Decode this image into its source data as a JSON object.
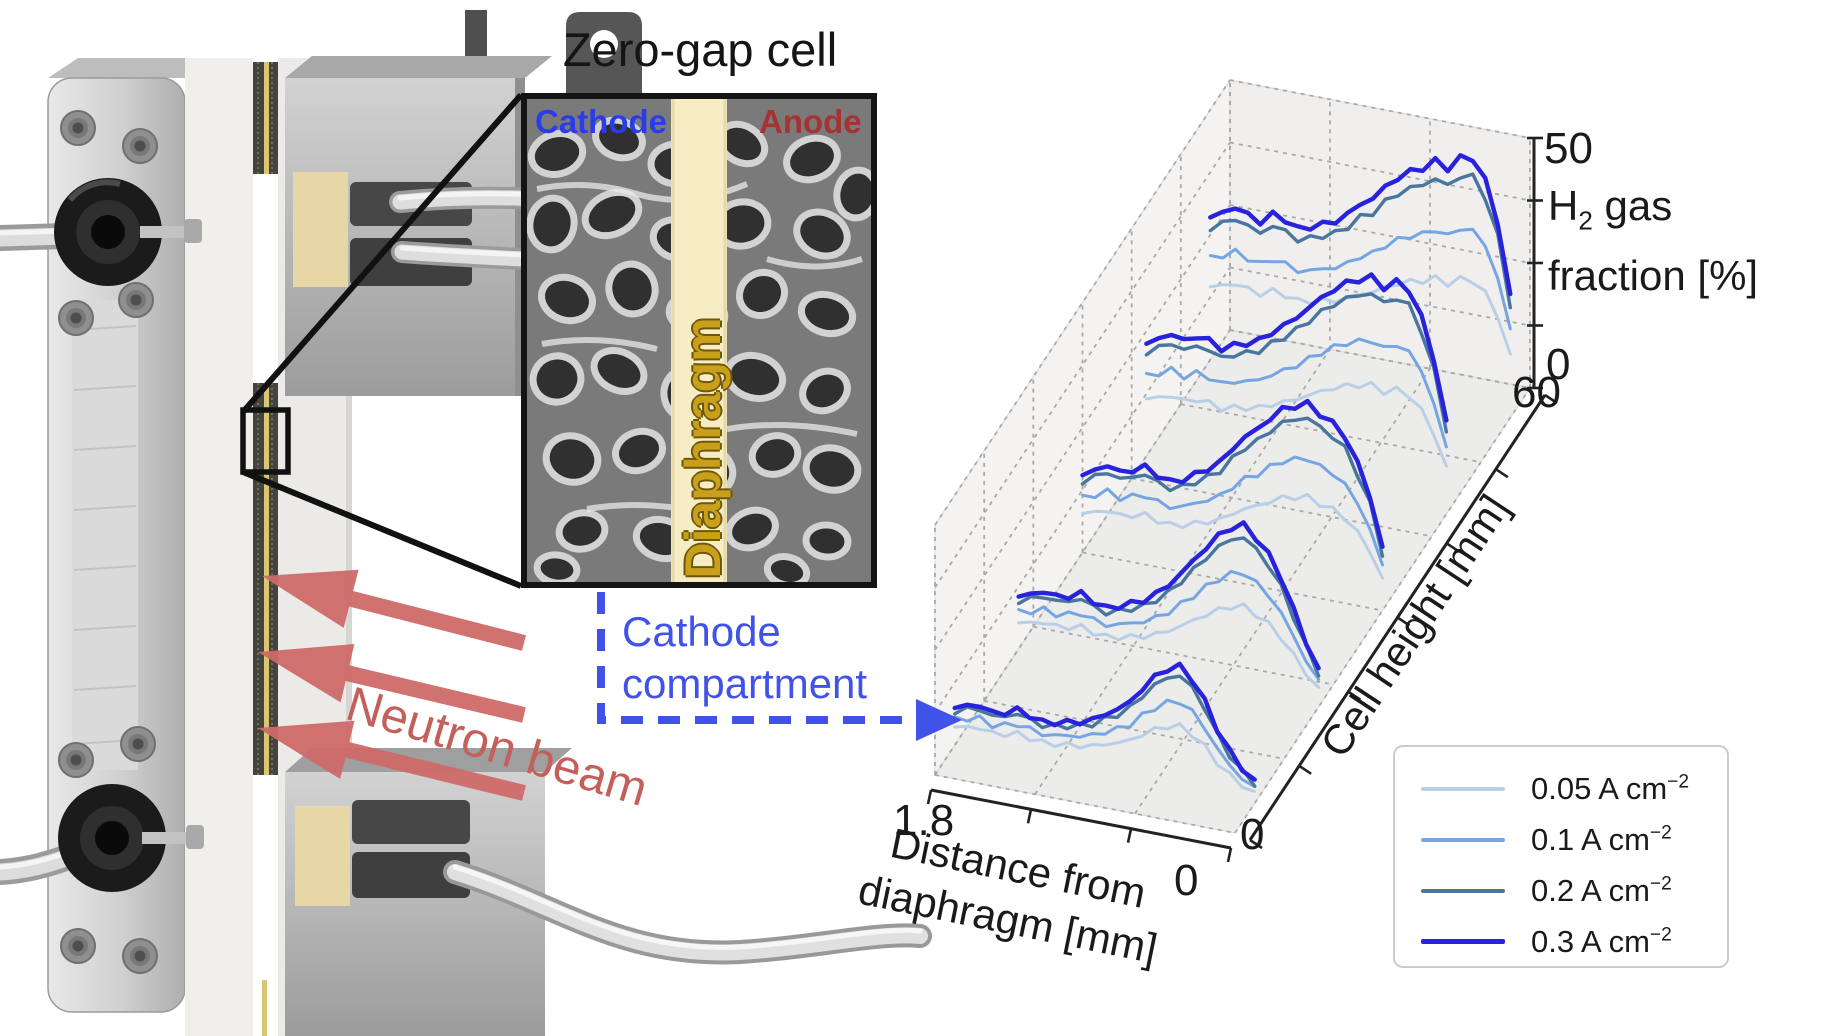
{
  "figure": {
    "inset": {
      "title": "Zero-gap cell",
      "cathode_label": "Cathode",
      "anode_label": "Anode",
      "diaphragm_label": "Diaphragm"
    },
    "annotations": {
      "neutron_beam": "Neutron beam",
      "cathode_compartment_line1": "Cathode",
      "cathode_compartment_line2": "compartment"
    },
    "colors": {
      "cathode_text": "#2a3ce8",
      "anode_text": "#a83232",
      "diaphragm_band": "#f7edc5",
      "diaphragm_text": "#c9a01c",
      "neutron_beam": "#cd6a68",
      "compartment_arrow": "#4152e8"
    }
  },
  "chart_data": {
    "type": "line",
    "projection": "3d-waterfall",
    "title": "",
    "grid": true,
    "legend_position": "lower right",
    "x_axis": {
      "label": "Distance from diaphragm [mm]",
      "label_line1": "Distance from",
      "label_line2": "diaphragm [mm]",
      "range": [
        1.8,
        0
      ],
      "ticks": [
        1.8,
        1.2,
        0.6,
        0
      ],
      "tick_labels_shown": [
        "1.8",
        "0"
      ]
    },
    "y_axis": {
      "label": "Cell height [mm]",
      "range": [
        0,
        60
      ],
      "ticks": [
        0,
        10,
        20,
        30,
        40,
        50,
        60
      ],
      "tick_labels_shown": [
        "0",
        "60"
      ]
    },
    "z_axis": {
      "label_h": "H",
      "label_sub": "2",
      "label_rest": " gas",
      "label_line2": "fraction [%]",
      "range": [
        0,
        50
      ],
      "ticks": [
        0,
        12.5,
        25,
        37.5,
        50
      ],
      "tick_labels_shown": [
        "0",
        "50"
      ]
    },
    "series": [
      {
        "label": "0.05 A cm",
        "sup": "−2",
        "color": "#b9cfe8",
        "relative_scale": 0.52,
        "line_width": 3
      },
      {
        "label": "0.1 A cm",
        "sup": "−2",
        "color": "#76a5e3",
        "relative_scale": 0.72,
        "line_width": 3
      },
      {
        "label": "0.2 A cm",
        "sup": "−2",
        "color": "#48769f",
        "relative_scale": 0.93,
        "line_width": 3.4
      },
      {
        "label": "0.3 A cm",
        "sup": "−2",
        "color": "#2822dd",
        "relative_scale": 1.0,
        "line_width": 4.4
      }
    ],
    "x_samples_mm": [
      1.8,
      1.725,
      1.65,
      1.575,
      1.5,
      1.425,
      1.35,
      1.275,
      1.2,
      1.125,
      1.05,
      0.975,
      0.9,
      0.825,
      0.75,
      0.675,
      0.6,
      0.525,
      0.45,
      0.375,
      0.3,
      0.225,
      0.15,
      0.075,
      0
    ],
    "profiles": [
      {
        "cell_height_mm": 56,
        "h2_fraction_at_0p3A": [
          28,
          29.5,
          31,
          30,
          29,
          31,
          30.5,
          29,
          30,
          31,
          32,
          34,
          36.5,
          38,
          41,
          43,
          45,
          46,
          48,
          47,
          49.5,
          50,
          46,
          38,
          24
        ]
      },
      {
        "cell_height_mm": 43,
        "h2_fraction_at_0p3A": [
          22,
          23.5,
          25,
          24,
          25.5,
          25,
          24,
          25,
          26,
          27,
          29,
          31,
          33,
          35.5,
          38,
          40,
          42,
          43,
          44,
          42.5,
          44,
          43,
          38,
          30,
          18
        ]
      },
      {
        "cell_height_mm": 30,
        "h2_fraction_at_0p3A": [
          15,
          16.5,
          18,
          17,
          18,
          19,
          18,
          17,
          18,
          19.5,
          21,
          23,
          26,
          29,
          31,
          33.5,
          36,
          37,
          38,
          36.5,
          35,
          33,
          28,
          22,
          12
        ]
      },
      {
        "cell_height_mm": 17,
        "h2_fraction_at_0p3A": [
          10,
          11,
          12,
          11.5,
          12,
          13,
          12,
          11,
          12,
          13,
          14,
          16,
          18,
          21,
          24,
          27,
          30,
          32,
          33,
          31,
          28,
          24,
          18,
          12,
          7
        ]
      },
      {
        "cell_height_mm": 4,
        "h2_fraction_at_0p3A": [
          7,
          8,
          8.5,
          7.5,
          8,
          9,
          8.5,
          7.5,
          8,
          8.5,
          9,
          10,
          11.5,
          13,
          15,
          18,
          21,
          23,
          24,
          22,
          18,
          13,
          9,
          6,
          4
        ]
      }
    ]
  }
}
